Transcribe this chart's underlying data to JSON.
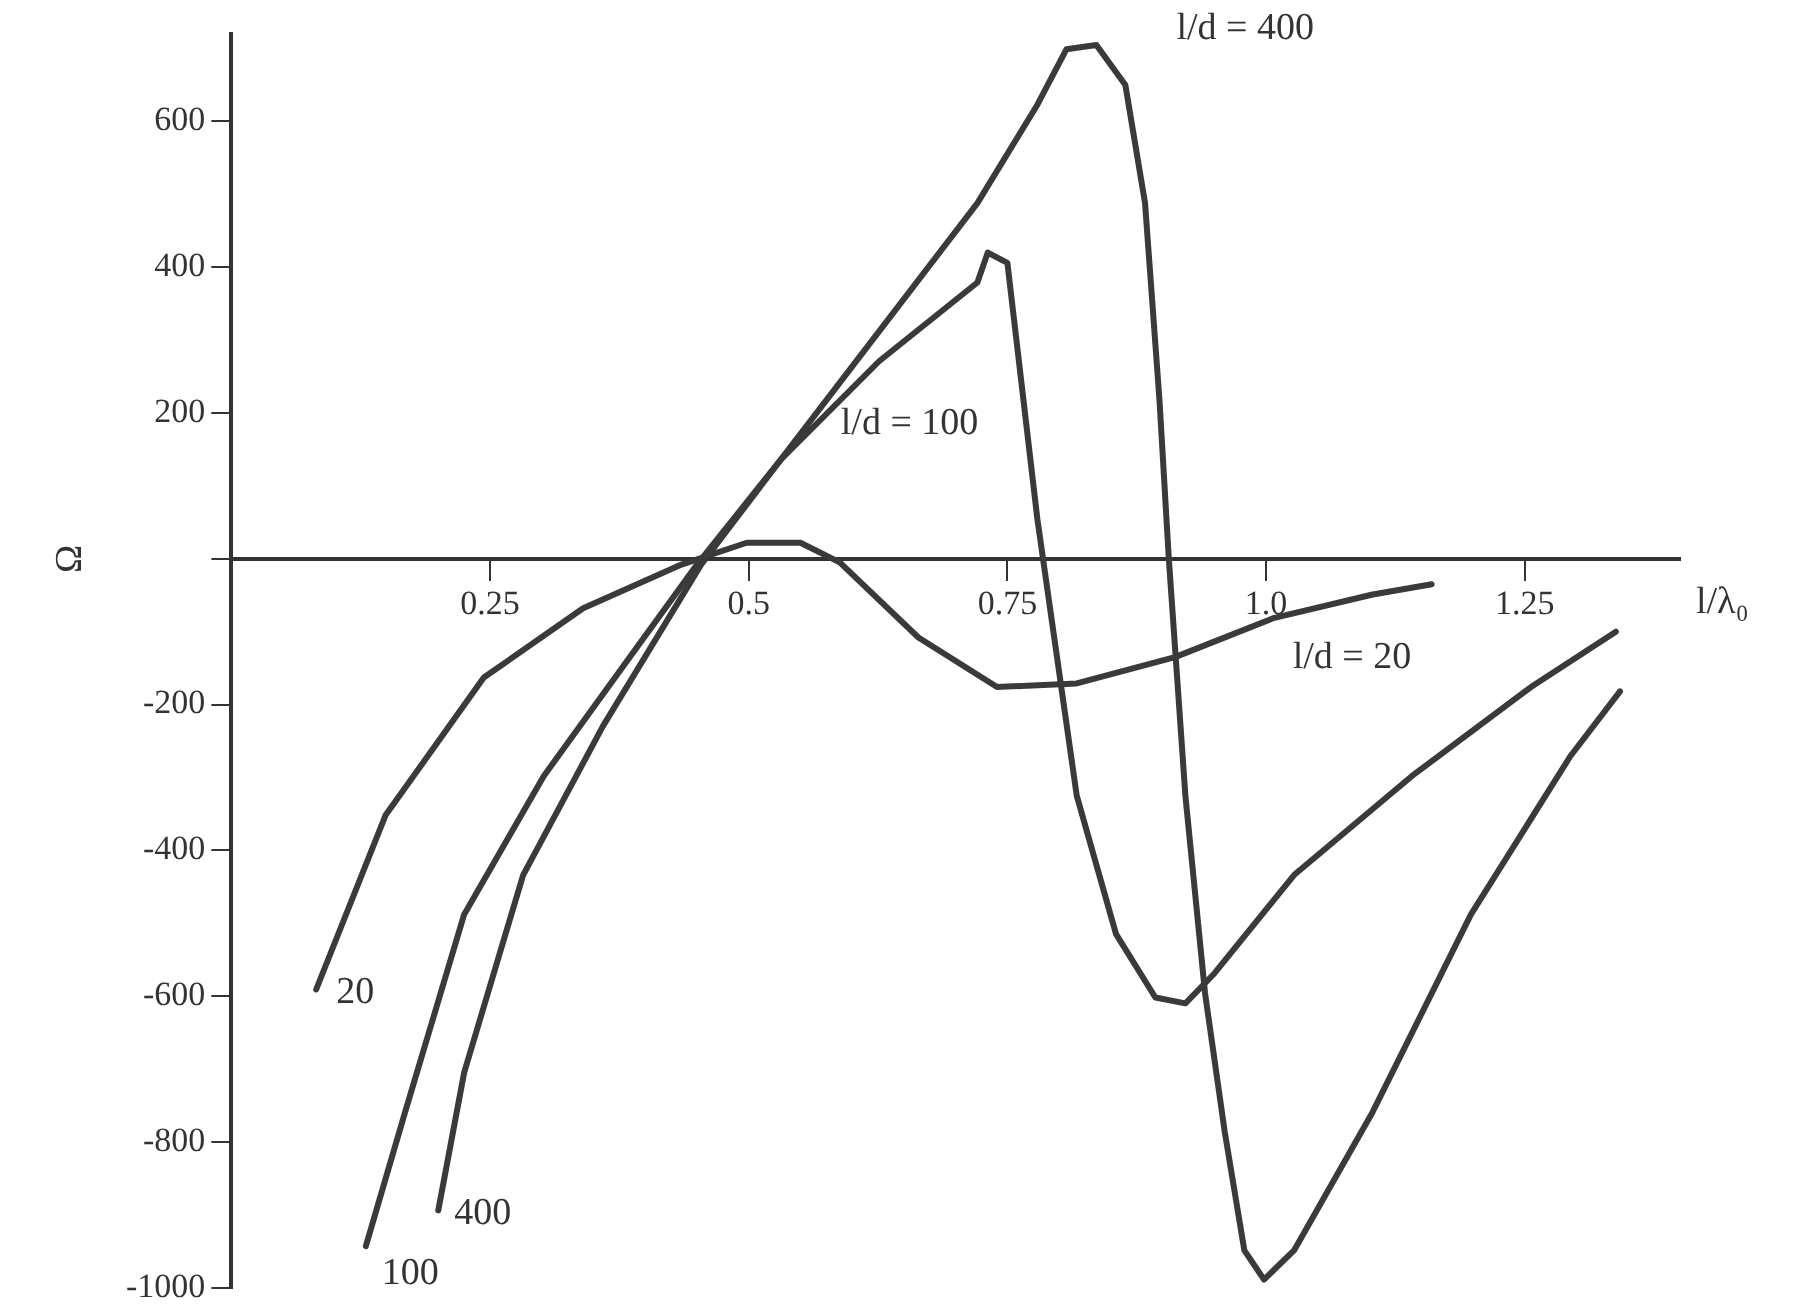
{
  "chart_data": {
    "type": "line",
    "xlabel": "l/λ₀",
    "ylabel": "Ω",
    "xlim": [
      0,
      1.4
    ],
    "ylim": [
      -1000,
      720
    ],
    "xticks": [
      {
        "value": 0.25,
        "label": "0.25"
      },
      {
        "value": 0.5,
        "label": "0.5"
      },
      {
        "value": 0.75,
        "label": "0.75"
      },
      {
        "value": 1.0,
        "label": "1.0"
      },
      {
        "value": 1.25,
        "label": "1.25"
      }
    ],
    "yticks": [
      -1000,
      -800,
      -600,
      -400,
      -200,
      {
        "value": 0,
        "label": null
      },
      200,
      400,
      600
    ],
    "grid": false,
    "legend": false,
    "marker": "none",
    "line_style": "solid",
    "series": [
      {
        "color": "#3a3a3a",
        "x": [
          0.082,
          0.149,
          0.244,
          0.34,
          0.435,
          0.498,
          0.55,
          0.588,
          0.664,
          0.74,
          0.817,
          0.912,
          1.008,
          1.103,
          1.16
        ],
        "values": [
          -591,
          -352,
          -163,
          -68,
          -8,
          22,
          22,
          -5,
          -108,
          -176,
          -171,
          -135,
          -81,
          -49,
          -35
        ]
      },
      {
        "color": "#3a3a3a",
        "x": [
          0.13,
          0.168,
          0.225,
          0.302,
          0.378,
          0.45,
          0.531,
          0.626,
          0.721,
          0.731,
          0.75,
          0.779,
          0.817,
          0.855,
          0.893,
          0.922,
          0.95,
          1.027,
          1.141,
          1.256,
          1.338
        ],
        "values": [
          -943,
          -759,
          -488,
          -298,
          -149,
          -8,
          136,
          271,
          379,
          420,
          406,
          54,
          -325,
          -515,
          -602,
          -610,
          -569,
          -434,
          -298,
          -176,
          -100
        ]
      },
      {
        "color": "#3a3a3a",
        "x": [
          0.2,
          0.225,
          0.282,
          0.359,
          0.454,
          0.531,
          0.626,
          0.721,
          0.779,
          0.807,
          0.836,
          0.864,
          0.883,
          0.897,
          0.906,
          0.922,
          0.941,
          0.96,
          0.979,
          0.998,
          1.027,
          1.103,
          1.198,
          1.294,
          1.342
        ],
        "values": [
          -894,
          -705,
          -434,
          -230,
          -8,
          136,
          312,
          488,
          623,
          699,
          705,
          650,
          488,
          217,
          0,
          -325,
          -596,
          -786,
          -949,
          -989,
          -949,
          -759,
          -488,
          -271,
          -182
        ]
      }
    ],
    "annotations": [
      "l/d = 400",
      "l/d = 100",
      "l/d = 20",
      "20",
      "100",
      "400"
    ]
  }
}
